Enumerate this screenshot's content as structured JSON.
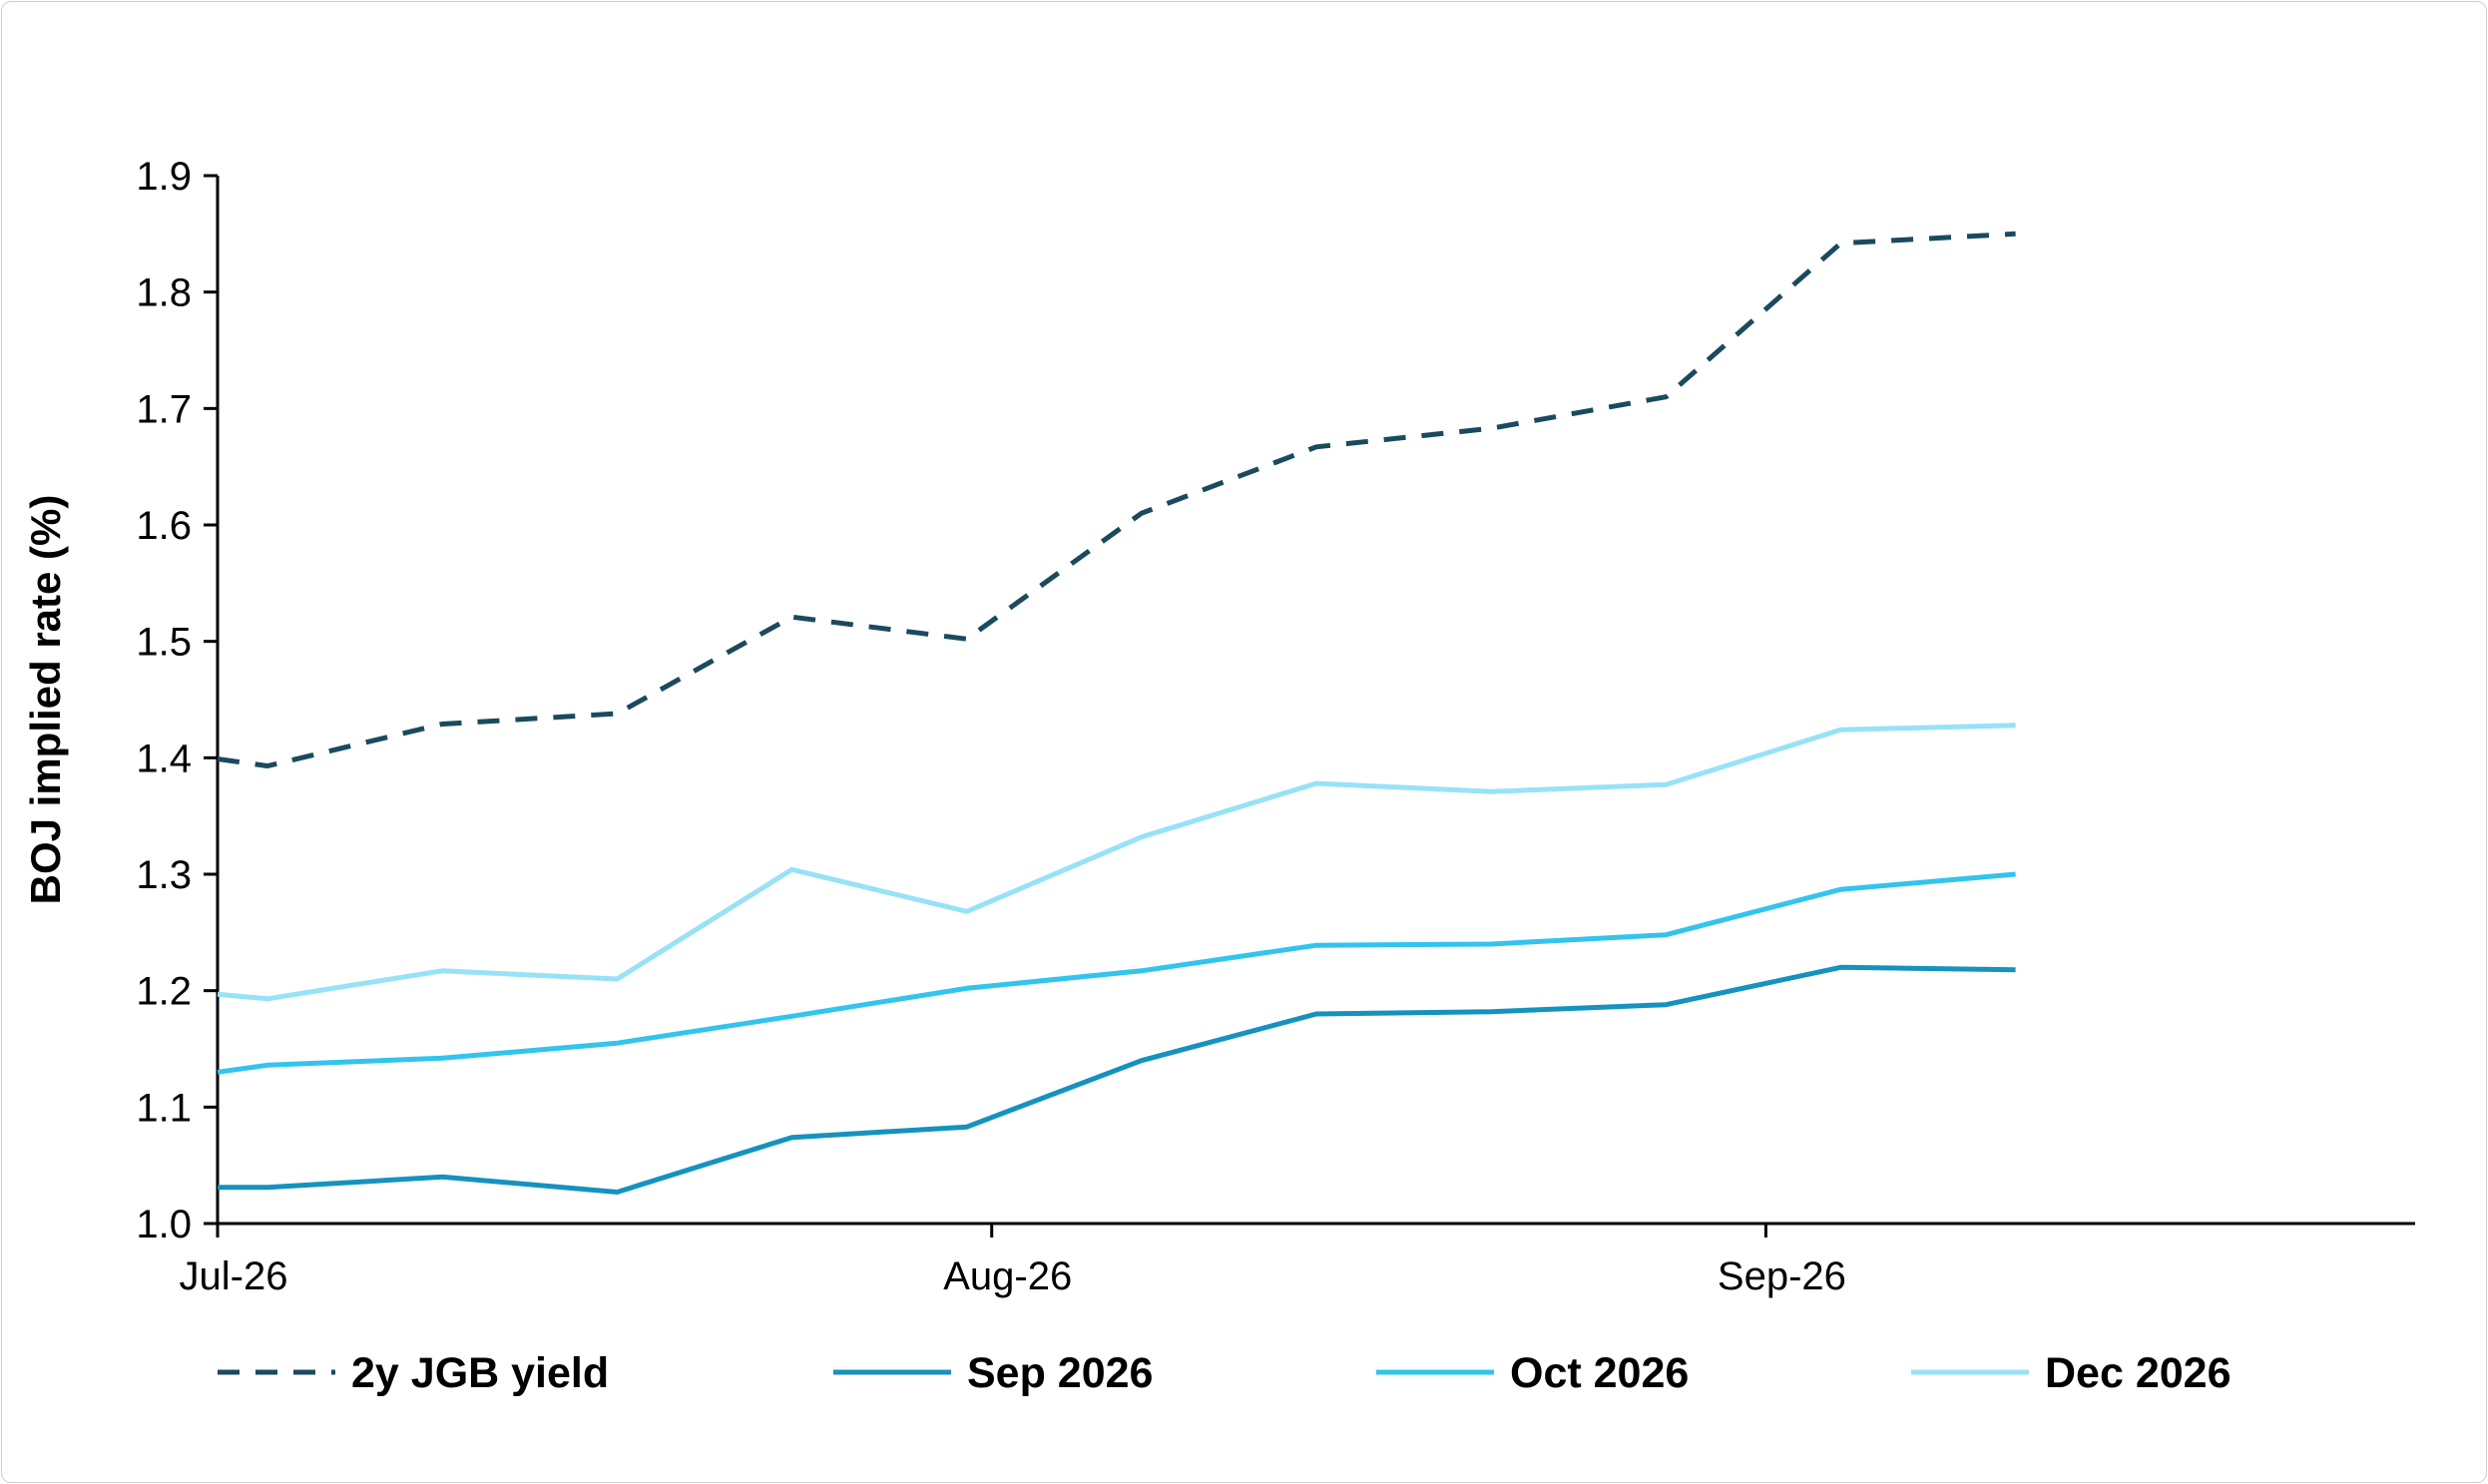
{
  "chart_data": {
    "type": "line",
    "title": "",
    "xlabel": "",
    "ylabel": "BOJ implied rate (%)",
    "ylim": [
      1.0,
      1.9
    ],
    "yticks": [
      1.0,
      1.1,
      1.2,
      1.3,
      1.4,
      1.5,
      1.6,
      1.7,
      1.8,
      1.9
    ],
    "ytick_labels": [
      "1.0",
      "1.1",
      "1.2",
      "1.3",
      "1.4",
      "1.5",
      "1.6",
      "1.7",
      "1.8",
      "1.9"
    ],
    "xlim": [
      "2026-07-01",
      "2026-09-27"
    ],
    "xticks": [
      "2026-07-01",
      "2026-08-01",
      "2026-09-01"
    ],
    "xtick_labels": [
      "Jul-26",
      "Aug-26",
      "Sep-26"
    ],
    "x": [
      "2026-07-01",
      "2026-07-03",
      "2026-07-10",
      "2026-07-17",
      "2026-07-24",
      "2026-07-31",
      "2026-08-07",
      "2026-08-14",
      "2026-08-21",
      "2026-08-28",
      "2026-09-04",
      "2026-09-11",
      "2026-09-18"
    ],
    "grid": false,
    "legend_position": "bottom",
    "series": [
      {
        "name": "2y JGB yield",
        "style": "dashed",
        "color": "#1a4a5e",
        "values": [
          1.399,
          1.393,
          1.429,
          1.438,
          1.521,
          1.502,
          1.61,
          1.667,
          1.683,
          1.71,
          1.842,
          1.85,
          null
        ]
      },
      {
        "name": "Sep 2026",
        "style": "solid",
        "color": "#1592be",
        "values": [
          1.031,
          1.031,
          1.04,
          1.027,
          1.074,
          1.083,
          1.14,
          1.18,
          1.182,
          1.188,
          1.22,
          1.218,
          null
        ]
      },
      {
        "name": "Oct 2026",
        "style": "solid",
        "color": "#33c4ee",
        "values": [
          1.13,
          1.136,
          1.142,
          1.155,
          1.178,
          1.202,
          1.217,
          1.239,
          1.24,
          1.248,
          1.287,
          1.3,
          null
        ]
      },
      {
        "name": "Dec 2026",
        "style": "solid",
        "color": "#97e2f7",
        "values": [
          1.197,
          1.193,
          1.217,
          1.21,
          1.304,
          1.268,
          1.332,
          1.378,
          1.371,
          1.377,
          1.424,
          1.428,
          null
        ]
      }
    ]
  },
  "colors": {
    "axis": "#000000",
    "background": "#ffffff"
  }
}
